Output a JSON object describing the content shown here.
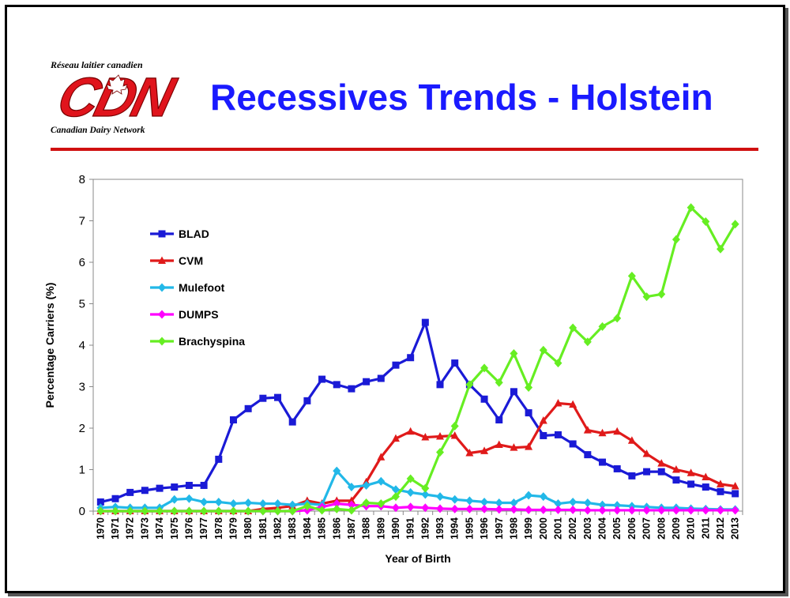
{
  "header": {
    "logo_text_fr": "Réseau laitier canadien",
    "logo_letters": "CDN",
    "logo_text_en": "Canadian Dairy Network",
    "title": "Recessives Trends - Holstein"
  },
  "colors": {
    "title": "#1a1aff",
    "rule": "#d01010",
    "logo": "#e0141c"
  },
  "chart_data": {
    "type": "line",
    "title": "",
    "xlabel": "Year of Birth",
    "ylabel": "Percentage Carriers (%)",
    "ylim": [
      0,
      8
    ],
    "yticks": [
      "0",
      "1",
      "2",
      "3",
      "4",
      "5",
      "6",
      "7",
      "8"
    ],
    "grid": false,
    "legend_position": "top-left",
    "categories": [
      "1970",
      "1971",
      "1972",
      "1973",
      "1974",
      "1975",
      "1976",
      "1977",
      "1978",
      "1979",
      "1980",
      "1981",
      "1982",
      "1983",
      "1984",
      "1985",
      "1986",
      "1987",
      "1988",
      "1989",
      "1990",
      "1991",
      "1992",
      "1993",
      "1994",
      "1995",
      "1996",
      "1997",
      "1998",
      "1999",
      "2000",
      "2001",
      "2002",
      "2003",
      "2004",
      "2005",
      "2006",
      "2007",
      "2008",
      "2009",
      "2010",
      "2011",
      "2012",
      "2013"
    ],
    "series": [
      {
        "name": "BLAD",
        "color": "#1a1ad6",
        "marker": "square",
        "values": [
          0.22,
          0.3,
          0.45,
          0.5,
          0.55,
          0.58,
          0.62,
          0.62,
          1.25,
          2.2,
          2.47,
          2.72,
          2.74,
          2.15,
          2.66,
          3.18,
          3.05,
          2.95,
          3.12,
          3.2,
          3.52,
          3.7,
          4.55,
          3.05,
          3.57,
          3.05,
          2.7,
          2.2,
          2.88,
          2.37,
          1.82,
          1.84,
          1.62,
          1.36,
          1.18,
          1.02,
          0.85,
          0.95,
          0.95,
          0.75,
          0.65,
          0.58,
          0.47,
          0.42
        ]
      },
      {
        "name": "CVM",
        "color": "#e01a1a",
        "marker": "triangle",
        "values": [
          0,
          0,
          0,
          0,
          0,
          0,
          0,
          0,
          0,
          0,
          0,
          0.05,
          0.08,
          0.12,
          0.25,
          0.18,
          0.25,
          0.25,
          0.7,
          1.3,
          1.75,
          1.92,
          1.78,
          1.8,
          1.82,
          1.4,
          1.45,
          1.6,
          1.53,
          1.55,
          2.18,
          2.6,
          2.57,
          1.95,
          1.88,
          1.92,
          1.7,
          1.38,
          1.15,
          1.0,
          0.92,
          0.82,
          0.65,
          0.6
        ]
      },
      {
        "name": "Mulefoot",
        "color": "#22b8e8",
        "marker": "diamond",
        "values": [
          0.08,
          0.1,
          0.08,
          0.08,
          0.08,
          0.28,
          0.3,
          0.22,
          0.22,
          0.18,
          0.2,
          0.18,
          0.18,
          0.15,
          0.18,
          0.15,
          0.97,
          0.58,
          0.62,
          0.72,
          0.52,
          0.45,
          0.4,
          0.35,
          0.28,
          0.25,
          0.22,
          0.2,
          0.2,
          0.38,
          0.35,
          0.18,
          0.22,
          0.2,
          0.15,
          0.14,
          0.12,
          0.1,
          0.08,
          0.08,
          0.06,
          0.05,
          0.04,
          0.04
        ]
      },
      {
        "name": "DUMPS",
        "color": "#ff00ff",
        "marker": "diamond",
        "values": [
          0,
          0,
          0,
          0,
          0,
          0,
          0,
          0,
          0,
          0,
          0,
          0,
          0,
          0,
          0.02,
          0.1,
          0.18,
          0.15,
          0.12,
          0.12,
          0.08,
          0.1,
          0.08,
          0.06,
          0.05,
          0.05,
          0.05,
          0.04,
          0.04,
          0.03,
          0.03,
          0.03,
          0.03,
          0.02,
          0.02,
          0.02,
          0.02,
          0.02,
          0.02,
          0.02,
          0.02,
          0.02,
          0.02,
          0.02
        ]
      },
      {
        "name": "Brachyspina",
        "color": "#66ee22",
        "marker": "diamond",
        "values": [
          0,
          0,
          0,
          0,
          0,
          0,
          0,
          0,
          0,
          0,
          0,
          0,
          0,
          0,
          0.12,
          0.02,
          0.05,
          0.02,
          0.2,
          0.18,
          0.35,
          0.78,
          0.55,
          1.42,
          2.05,
          3.05,
          3.45,
          3.1,
          3.8,
          2.98,
          3.88,
          3.57,
          4.42,
          4.08,
          4.45,
          4.65,
          5.67,
          5.17,
          5.23,
          6.55,
          7.32,
          6.98,
          6.32,
          6.92
        ]
      }
    ]
  }
}
